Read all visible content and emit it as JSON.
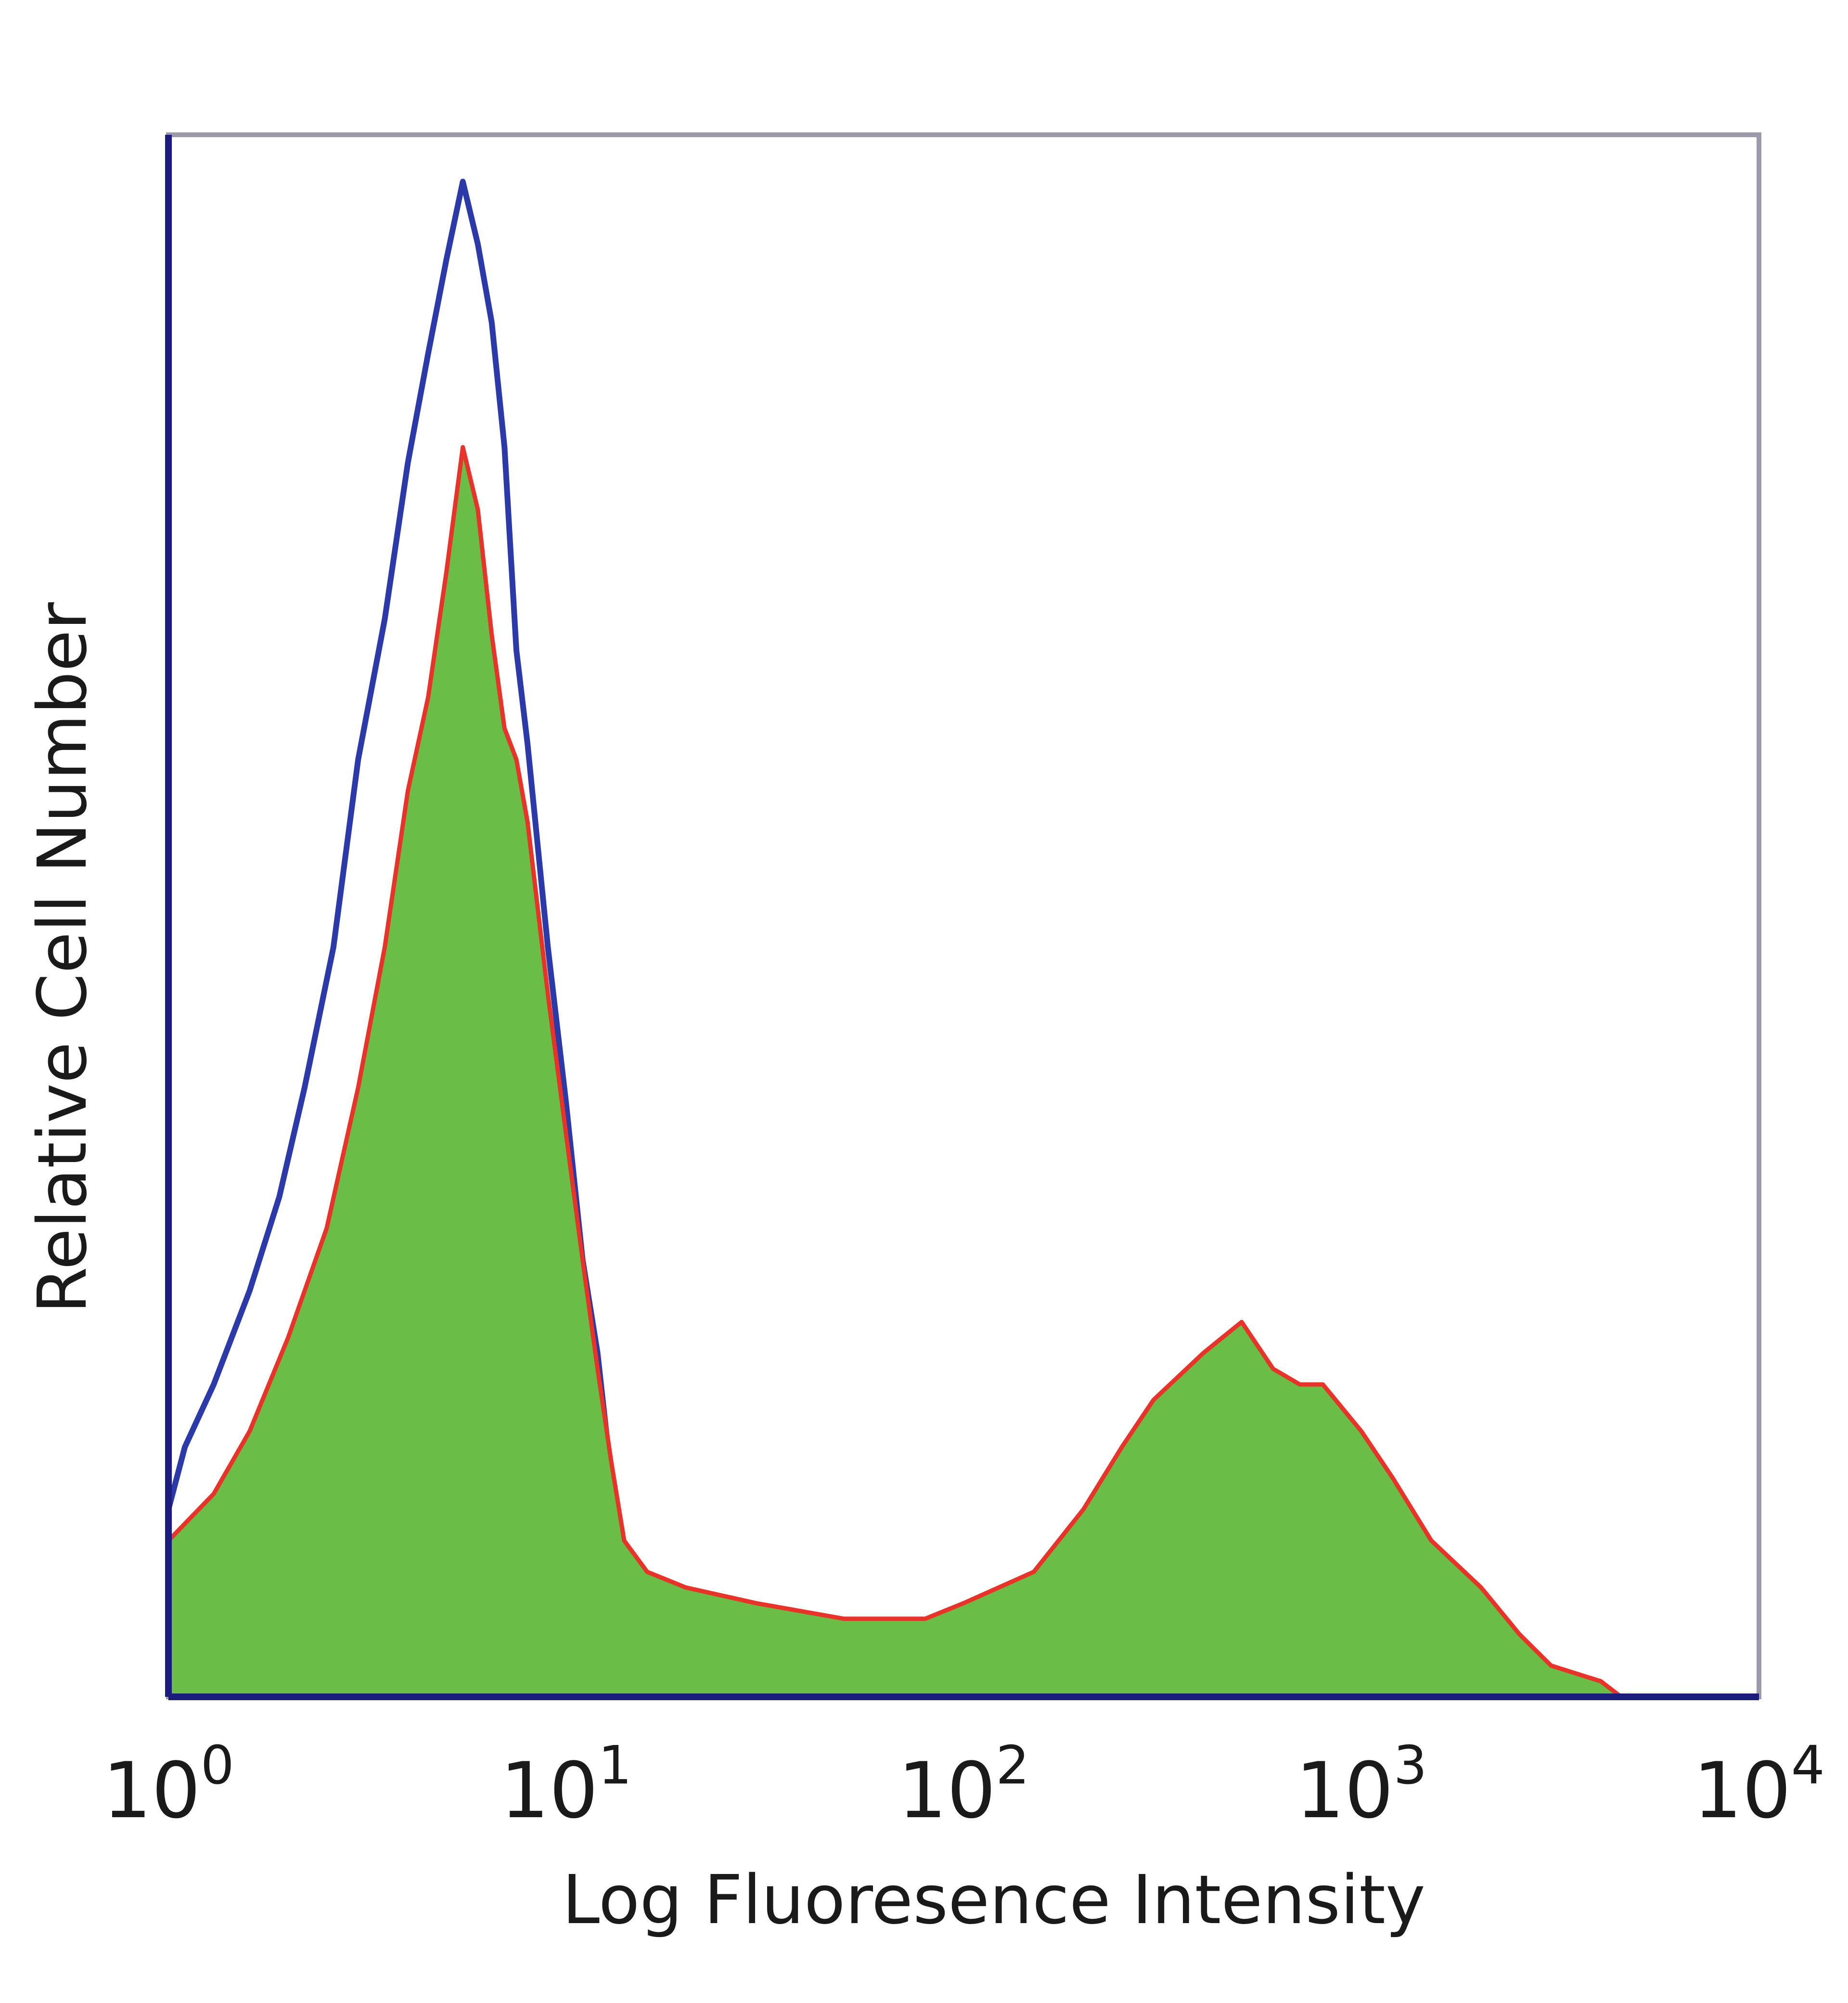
{
  "chart_data": {
    "type": "area",
    "title": "",
    "xlabel": "Log Fluoresence Intensity",
    "ylabel": "Relative Cell Number",
    "xscale": "log",
    "xlim": [
      1,
      10000
    ],
    "ylim": [
      0,
      1.0
    ],
    "grid": false,
    "legend": "none",
    "x_ticks": [
      {
        "value": 1,
        "base": "10",
        "exp": "0"
      },
      {
        "value": 10,
        "base": "10",
        "exp": "1"
      },
      {
        "value": 100,
        "base": "10",
        "exp": "2"
      },
      {
        "value": 1000,
        "base": "10",
        "exp": "3"
      },
      {
        "value": 10000,
        "base": "10",
        "exp": "4"
      }
    ],
    "colors": {
      "axes": "#1c1c7a",
      "blue_line": "#2b3aa8",
      "green_fill": "#6cbd45",
      "red_line": "#e8332a",
      "text": "#1a1a1a"
    },
    "series": [
      {
        "style": "line",
        "color": "#2b3aa8",
        "x": [
          1.0,
          1.1,
          1.3,
          1.6,
          1.9,
          2.2,
          2.6,
          3.0,
          3.5,
          4.0,
          4.5,
          5.0,
          5.5,
          6.0,
          6.5,
          7.0,
          7.5,
          8.0,
          9.0,
          10.0,
          11.0,
          12.0,
          13.0,
          14.0,
          16.0,
          18.0,
          20.0,
          25.0,
          40.0,
          100.0,
          180.0,
          200.0
        ],
        "y": [
          0.12,
          0.16,
          0.2,
          0.26,
          0.32,
          0.39,
          0.48,
          0.6,
          0.69,
          0.79,
          0.86,
          0.92,
          0.97,
          0.93,
          0.88,
          0.8,
          0.67,
          0.61,
          0.48,
          0.38,
          0.28,
          0.22,
          0.14,
          0.08,
          0.03,
          0.01,
          0.0,
          0.0,
          0.0,
          0.0,
          0.0,
          0.0
        ]
      },
      {
        "style": "filled",
        "color": "#6cbd45",
        "edge_color": "#e8332a",
        "x": [
          1.0,
          1.3,
          1.6,
          2.0,
          2.5,
          3.0,
          3.5,
          4.0,
          4.5,
          5.0,
          5.5,
          6.0,
          6.5,
          7.0,
          7.5,
          8.0,
          9.0,
          10.0,
          11.0,
          12.0,
          13.0,
          14.0,
          16.0,
          20.0,
          30.0,
          50.0,
          80.0,
          100.0,
          150.0,
          200.0,
          250.0,
          300.0,
          400.0,
          500.0,
          600.0,
          700.0,
          800.0,
          1000.0,
          1200.0,
          1500.0,
          2000.0,
          2500.0,
          3000.0,
          4000.0,
          4500.0
        ],
        "y": [
          0.1,
          0.13,
          0.17,
          0.23,
          0.3,
          0.39,
          0.48,
          0.58,
          0.64,
          0.72,
          0.8,
          0.76,
          0.68,
          0.62,
          0.6,
          0.56,
          0.45,
          0.36,
          0.28,
          0.21,
          0.15,
          0.1,
          0.08,
          0.07,
          0.06,
          0.05,
          0.05,
          0.06,
          0.08,
          0.12,
          0.16,
          0.19,
          0.22,
          0.24,
          0.21,
          0.2,
          0.2,
          0.17,
          0.14,
          0.1,
          0.07,
          0.04,
          0.02,
          0.01,
          0.0
        ]
      }
    ]
  }
}
